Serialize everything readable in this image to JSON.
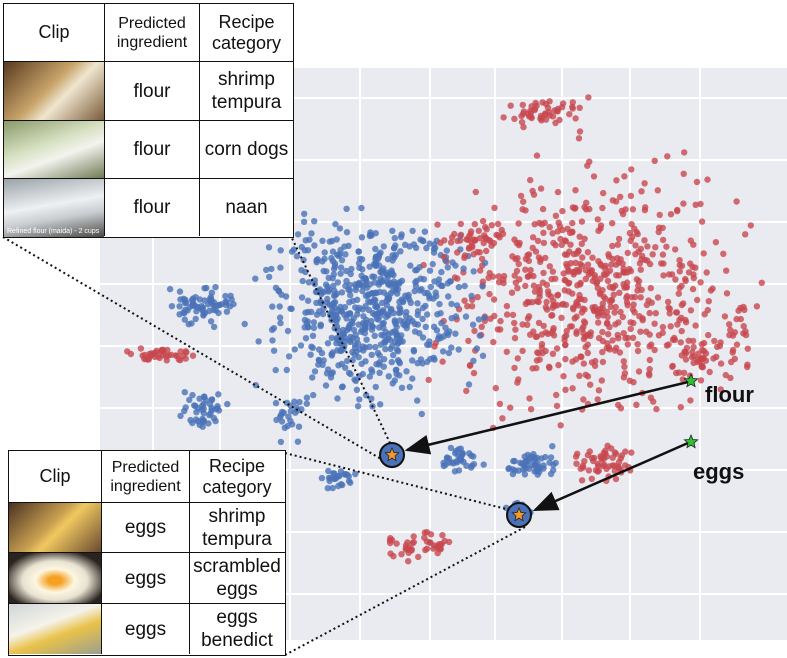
{
  "tables": [
    {
      "header": [
        "Clip",
        "Predicted ingredient",
        "Recipe category"
      ],
      "rows": [
        {
          "ingredient": "flour",
          "category": "shrimp tempura"
        },
        {
          "ingredient": "flour",
          "category": "corn dogs"
        },
        {
          "ingredient": "flour",
          "category": "naan",
          "clip_text": "Refined flour (maida) - 2 cups"
        }
      ]
    },
    {
      "header": [
        "Clip",
        "Predicted ingredient",
        "Recipe category"
      ],
      "rows": [
        {
          "ingredient": "eggs",
          "category": "shrimp tempura"
        },
        {
          "ingredient": "eggs",
          "category": "scrambled eggs"
        },
        {
          "ingredient": "eggs",
          "category": "eggs benedict"
        }
      ]
    }
  ],
  "labels": [
    "flour",
    "eggs"
  ]
}
